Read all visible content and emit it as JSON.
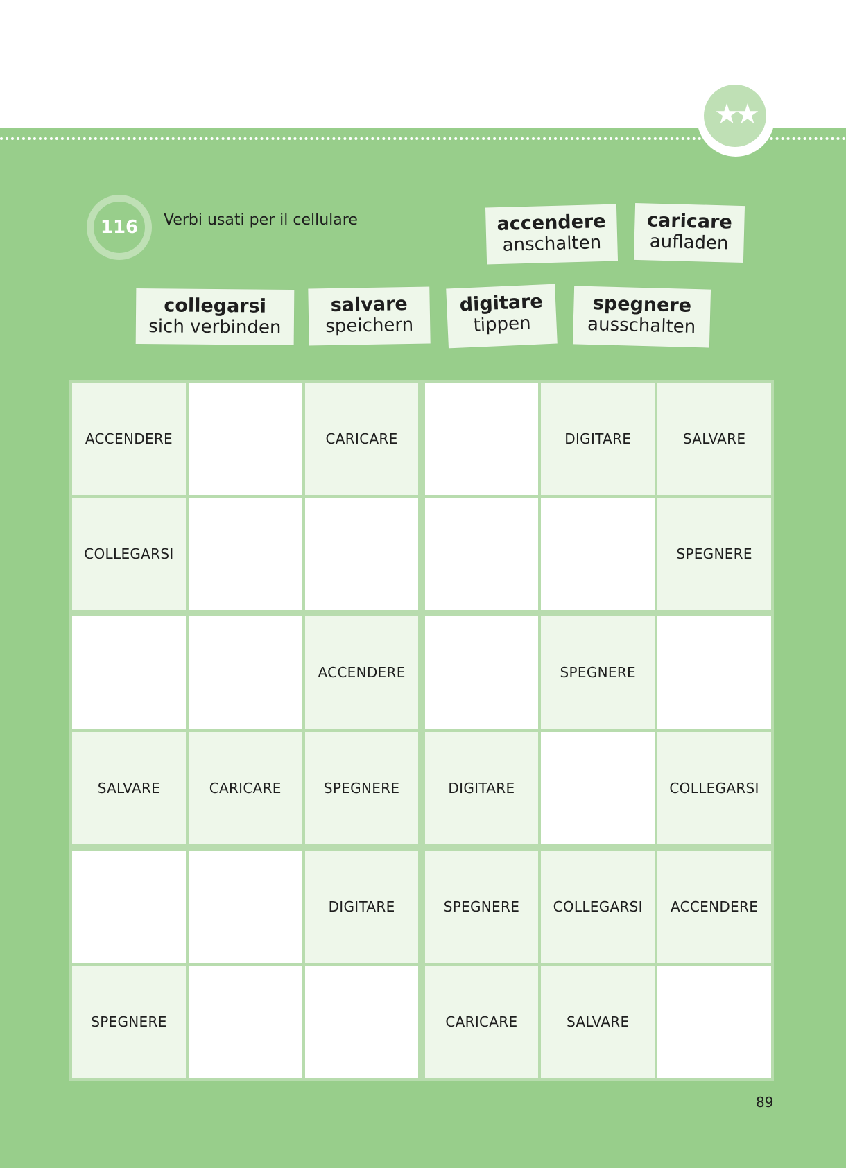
{
  "difficulty_badge": {
    "icon": "two-stars-icon",
    "glyph": "★★"
  },
  "exercise": {
    "number": "116",
    "title": "Verbi usati per il cellulare"
  },
  "vocabulary": [
    {
      "italian": "accendere",
      "german": "anschalten"
    },
    {
      "italian": "caricare",
      "german": "aufladen"
    },
    {
      "italian": "collegarsi",
      "german": "sich verbinden"
    },
    {
      "italian": "salvare",
      "german": "speichern"
    },
    {
      "italian": "digitare",
      "german": "tippen"
    },
    {
      "italian": "spegnere",
      "german": "ausschalten"
    }
  ],
  "sudoku": [
    [
      "ACCENDERE",
      "",
      "CARICARE",
      "",
      "DIGITARE",
      "SALVARE"
    ],
    [
      "COLLEGARSI",
      "",
      "",
      "",
      "",
      "SPEGNERE"
    ],
    [
      "",
      "",
      "ACCENDERE",
      "",
      "SPEGNERE",
      ""
    ],
    [
      "SALVARE",
      "CARICARE",
      "SPEGNERE",
      "DIGITARE",
      "",
      "COLLEGARSI"
    ],
    [
      "",
      "",
      "DIGITARE",
      "SPEGNERE",
      "COLLEGARSI",
      "ACCENDERE"
    ],
    [
      "SPEGNERE",
      "",
      "",
      "CARICARE",
      "SALVARE",
      ""
    ]
  ],
  "page_number": "89",
  "colors": {
    "page_green": "#98ce8b",
    "light_green": "#bfe0b5",
    "cell_filled": "#eef7ea",
    "cell_empty": "#ffffff"
  }
}
